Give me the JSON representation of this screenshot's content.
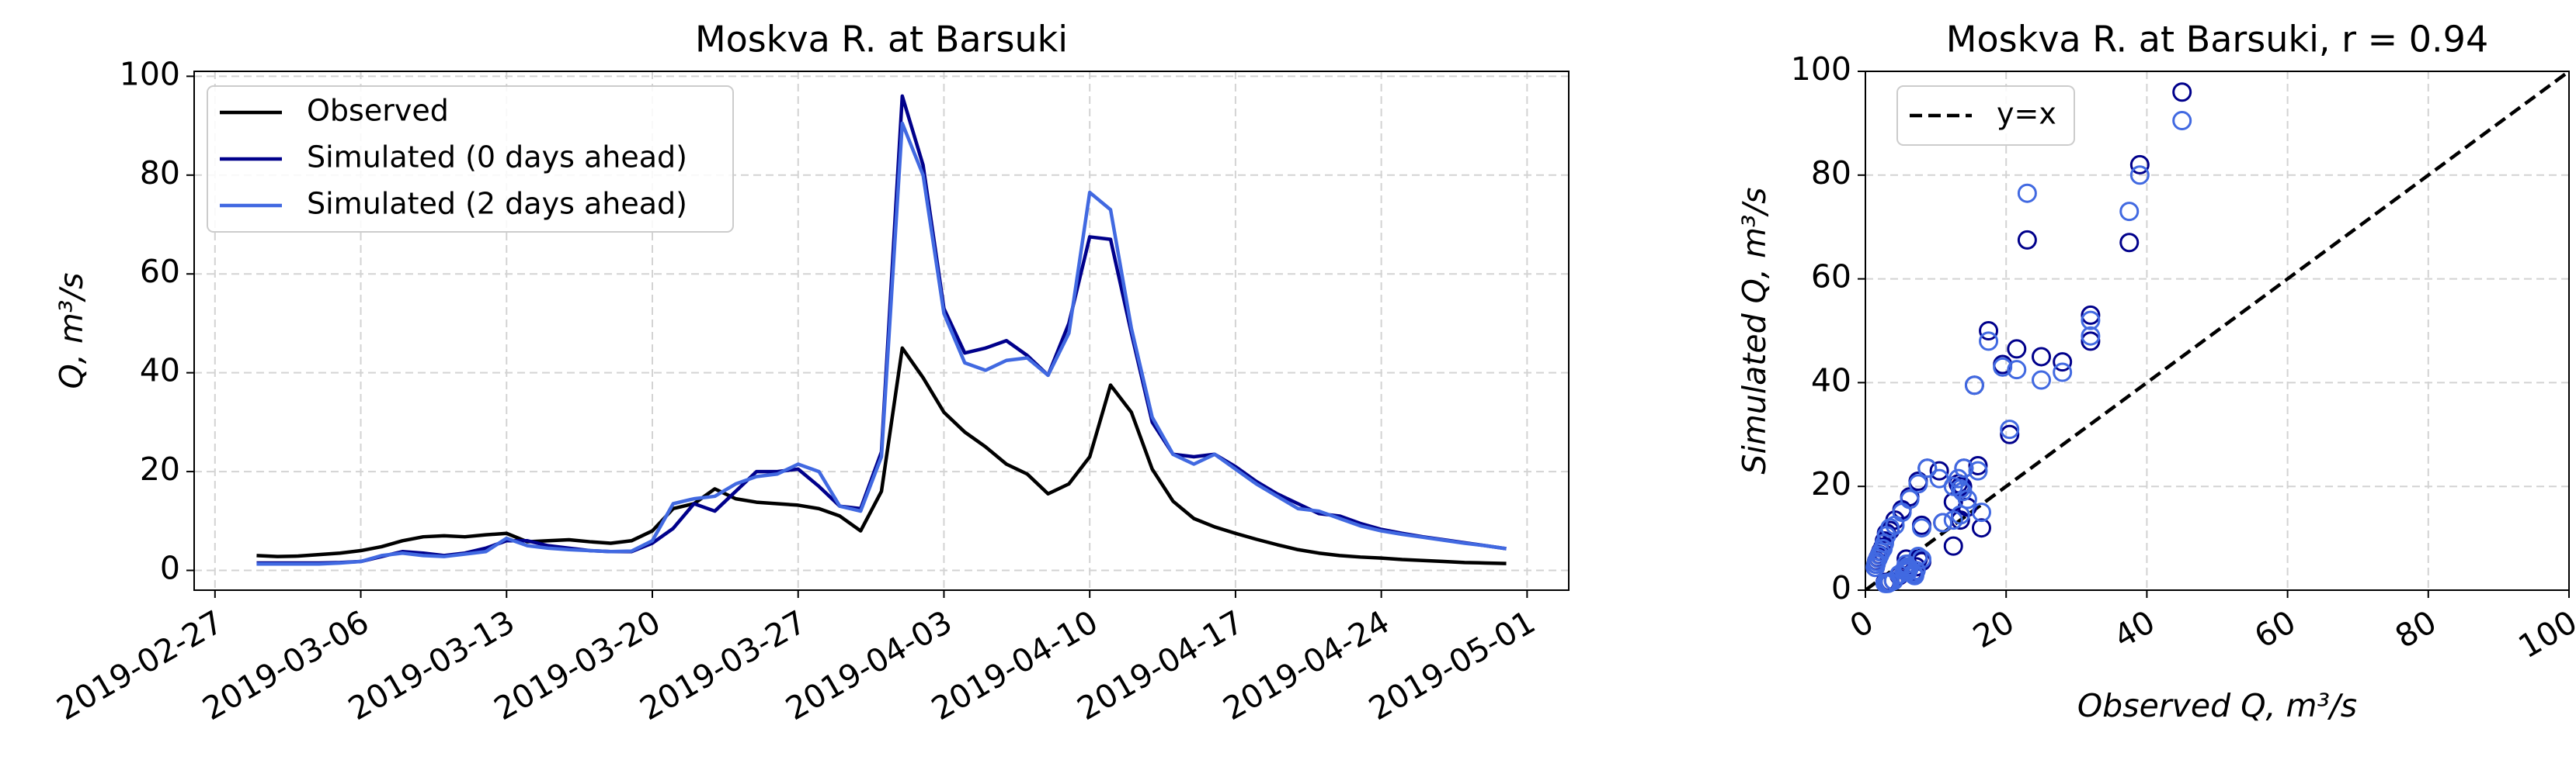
{
  "chart_data": [
    {
      "type": "line",
      "title": "Moskva R. at Barsuki",
      "ylabel": "Q, m³/s",
      "x": [
        "2019-03-01",
        "2019-03-02",
        "2019-03-03",
        "2019-03-04",
        "2019-03-05",
        "2019-03-06",
        "2019-03-07",
        "2019-03-08",
        "2019-03-09",
        "2019-03-10",
        "2019-03-11",
        "2019-03-12",
        "2019-03-13",
        "2019-03-14",
        "2019-03-15",
        "2019-03-16",
        "2019-03-17",
        "2019-03-18",
        "2019-03-19",
        "2019-03-20",
        "2019-03-21",
        "2019-03-22",
        "2019-03-23",
        "2019-03-24",
        "2019-03-25",
        "2019-03-26",
        "2019-03-27",
        "2019-03-28",
        "2019-03-29",
        "2019-03-30",
        "2019-03-31",
        "2019-04-01",
        "2019-04-02",
        "2019-04-03",
        "2019-04-04",
        "2019-04-05",
        "2019-04-06",
        "2019-04-07",
        "2019-04-08",
        "2019-04-09",
        "2019-04-10",
        "2019-04-11",
        "2019-04-12",
        "2019-04-13",
        "2019-04-14",
        "2019-04-15",
        "2019-04-16",
        "2019-04-17",
        "2019-04-18",
        "2019-04-19",
        "2019-04-20",
        "2019-04-21",
        "2019-04-22",
        "2019-04-23",
        "2019-04-24",
        "2019-04-25",
        "2019-04-26",
        "2019-04-27",
        "2019-04-28",
        "2019-04-29",
        "2019-04-30"
      ],
      "series": [
        {
          "name": "Observed",
          "color": "#000000",
          "values": [
            3.0,
            2.8,
            2.9,
            3.2,
            3.5,
            4.0,
            4.8,
            6.0,
            6.8,
            7.0,
            6.8,
            7.2,
            7.5,
            5.8,
            6.0,
            6.2,
            5.8,
            5.5,
            6.0,
            8.0,
            12.5,
            13.5,
            16.5,
            14.5,
            13.8,
            13.5,
            13.2,
            12.5,
            11.0,
            8.0,
            16.0,
            45.0,
            39.0,
            32.0,
            28.0,
            25.0,
            21.5,
            19.5,
            15.5,
            17.5,
            23.0,
            37.5,
            32.0,
            20.5,
            14.0,
            10.5,
            8.8,
            7.5,
            6.3,
            5.2,
            4.2,
            3.5,
            3.0,
            2.7,
            2.5,
            2.2,
            2.0,
            1.8,
            1.6,
            1.5,
            1.4
          ]
        },
        {
          "name": "Simulated (0 days ahead)",
          "color": "#00008b",
          "values": [
            1.5,
            1.5,
            1.5,
            1.5,
            1.6,
            1.8,
            2.8,
            3.8,
            3.5,
            3.0,
            3.5,
            4.5,
            6.0,
            6.0,
            5.0,
            4.5,
            4.0,
            3.8,
            3.8,
            5.5,
            8.5,
            13.5,
            12.0,
            16.0,
            20.0,
            20.0,
            20.5,
            17.0,
            13.0,
            12.5,
            24.0,
            96.0,
            82.0,
            53.0,
            44.0,
            45.0,
            46.5,
            43.5,
            39.5,
            50.0,
            67.5,
            67.0,
            48.0,
            30.0,
            23.5,
            23.0,
            23.5,
            21.0,
            18.0,
            15.5,
            13.5,
            11.5,
            11.0,
            9.5,
            8.3,
            7.5,
            6.8,
            6.2,
            5.6,
            5.0,
            4.4
          ]
        },
        {
          "name": "Simulated (2 days ahead)",
          "color": "#4169e1",
          "values": [
            1.3,
            1.3,
            1.3,
            1.3,
            1.5,
            1.8,
            3.0,
            3.5,
            3.0,
            2.8,
            3.3,
            3.8,
            6.5,
            5.0,
            4.5,
            4.2,
            4.0,
            3.8,
            3.9,
            6.0,
            13.5,
            14.5,
            15.0,
            17.5,
            19.0,
            19.5,
            21.5,
            20.0,
            13.0,
            12.0,
            23.0,
            90.5,
            80.0,
            52.0,
            42.0,
            40.5,
            42.5,
            43.0,
            39.5,
            48.0,
            76.5,
            73.0,
            49.0,
            31.0,
            23.5,
            21.5,
            23.5,
            20.5,
            17.5,
            15.0,
            12.5,
            12.0,
            10.5,
            9.0,
            8.0,
            7.3,
            6.7,
            6.1,
            5.5,
            5.0,
            4.4
          ]
        }
      ],
      "xlim": [
        "2019-02-26",
        "2019-05-03"
      ],
      "xticks": [
        "2019-02-27",
        "2019-03-06",
        "2019-03-13",
        "2019-03-20",
        "2019-03-27",
        "2019-04-03",
        "2019-04-10",
        "2019-04-17",
        "2019-04-24",
        "2019-05-01"
      ],
      "ylim": [
        -4,
        101
      ],
      "yticks": [
        0,
        20,
        40,
        60,
        80,
        100
      ],
      "grid": true,
      "legend": "upper left"
    },
    {
      "type": "scatter",
      "title": "Moskva R. at Barsuki, r = 0.94",
      "xlabel": "Observed Q, m³/s",
      "ylabel": "Simulated Q, m³/s",
      "series": [
        {
          "color": "#00008b",
          "x": [
            3.0,
            2.8,
            2.9,
            3.2,
            3.5,
            4.0,
            4.8,
            6.0,
            6.8,
            7.0,
            6.8,
            7.2,
            7.5,
            5.8,
            6.0,
            6.2,
            5.8,
            5.5,
            6.0,
            8.0,
            12.5,
            13.5,
            16.5,
            14.5,
            13.8,
            13.5,
            13.2,
            12.5,
            11.0,
            8.0,
            16.0,
            45.0,
            39.0,
            32.0,
            28.0,
            25.0,
            21.5,
            19.5,
            15.5,
            17.5,
            23.0,
            37.5,
            32.0,
            20.5,
            14.0,
            10.5,
            8.8,
            7.5,
            6.3,
            5.2,
            4.2,
            3.5,
            3.0,
            2.7,
            2.5,
            2.2,
            2.0,
            1.8,
            1.6,
            1.5,
            1.4
          ],
          "values": [
            1.5,
            1.5,
            1.5,
            1.5,
            1.6,
            1.8,
            2.8,
            3.8,
            3.5,
            3.0,
            3.5,
            4.5,
            6.0,
            6.0,
            5.0,
            4.5,
            4.0,
            3.8,
            3.8,
            5.5,
            8.5,
            13.5,
            12.0,
            16.0,
            20.0,
            20.0,
            20.5,
            17.0,
            13.0,
            12.5,
            24.0,
            96.0,
            82.0,
            53.0,
            44.0,
            45.0,
            46.5,
            43.5,
            39.5,
            50.0,
            67.5,
            67.0,
            48.0,
            30.0,
            23.5,
            23.0,
            23.5,
            21.0,
            18.0,
            15.5,
            13.5,
            11.5,
            11.0,
            9.5,
            8.3,
            7.5,
            6.8,
            6.2,
            5.6,
            5.0,
            4.4
          ]
        },
        {
          "color": "#4169e1",
          "x": [
            3.0,
            2.8,
            2.9,
            3.2,
            3.5,
            4.0,
            4.8,
            6.0,
            6.8,
            7.0,
            6.8,
            7.2,
            7.5,
            5.8,
            6.0,
            6.2,
            5.8,
            5.5,
            6.0,
            8.0,
            12.5,
            13.5,
            16.5,
            14.5,
            13.8,
            13.5,
            13.2,
            12.5,
            11.0,
            8.0,
            16.0,
            45.0,
            39.0,
            32.0,
            28.0,
            25.0,
            21.5,
            19.5,
            15.5,
            17.5,
            23.0,
            37.5,
            32.0,
            20.5,
            14.0,
            10.5,
            8.8,
            7.5,
            6.3,
            5.2,
            4.2,
            3.5,
            3.0,
            2.7,
            2.5,
            2.2,
            2.0,
            1.8,
            1.6,
            1.5,
            1.4
          ],
          "values": [
            1.3,
            1.3,
            1.3,
            1.3,
            1.5,
            1.8,
            3.0,
            3.5,
            3.0,
            2.8,
            3.3,
            3.8,
            6.5,
            5.0,
            4.5,
            4.2,
            4.0,
            3.8,
            3.9,
            6.0,
            13.5,
            14.5,
            15.0,
            17.5,
            19.0,
            19.5,
            21.5,
            20.0,
            13.0,
            12.0,
            23.0,
            90.5,
            80.0,
            52.0,
            42.0,
            40.5,
            42.5,
            43.0,
            39.5,
            48.0,
            76.5,
            73.0,
            49.0,
            31.0,
            23.5,
            21.5,
            23.5,
            20.5,
            17.5,
            15.0,
            12.5,
            12.0,
            10.5,
            9.0,
            8.0,
            7.3,
            6.7,
            6.1,
            5.5,
            5.0,
            4.4
          ]
        }
      ],
      "reference_line": {
        "label": "y=x",
        "color": "#000000"
      },
      "xlim": [
        0,
        100
      ],
      "xticks": [
        0,
        20,
        40,
        60,
        80,
        100
      ],
      "ylim": [
        0,
        100
      ],
      "yticks": [
        0,
        20,
        40,
        60,
        80,
        100
      ],
      "grid": true,
      "legend": "upper left"
    }
  ]
}
